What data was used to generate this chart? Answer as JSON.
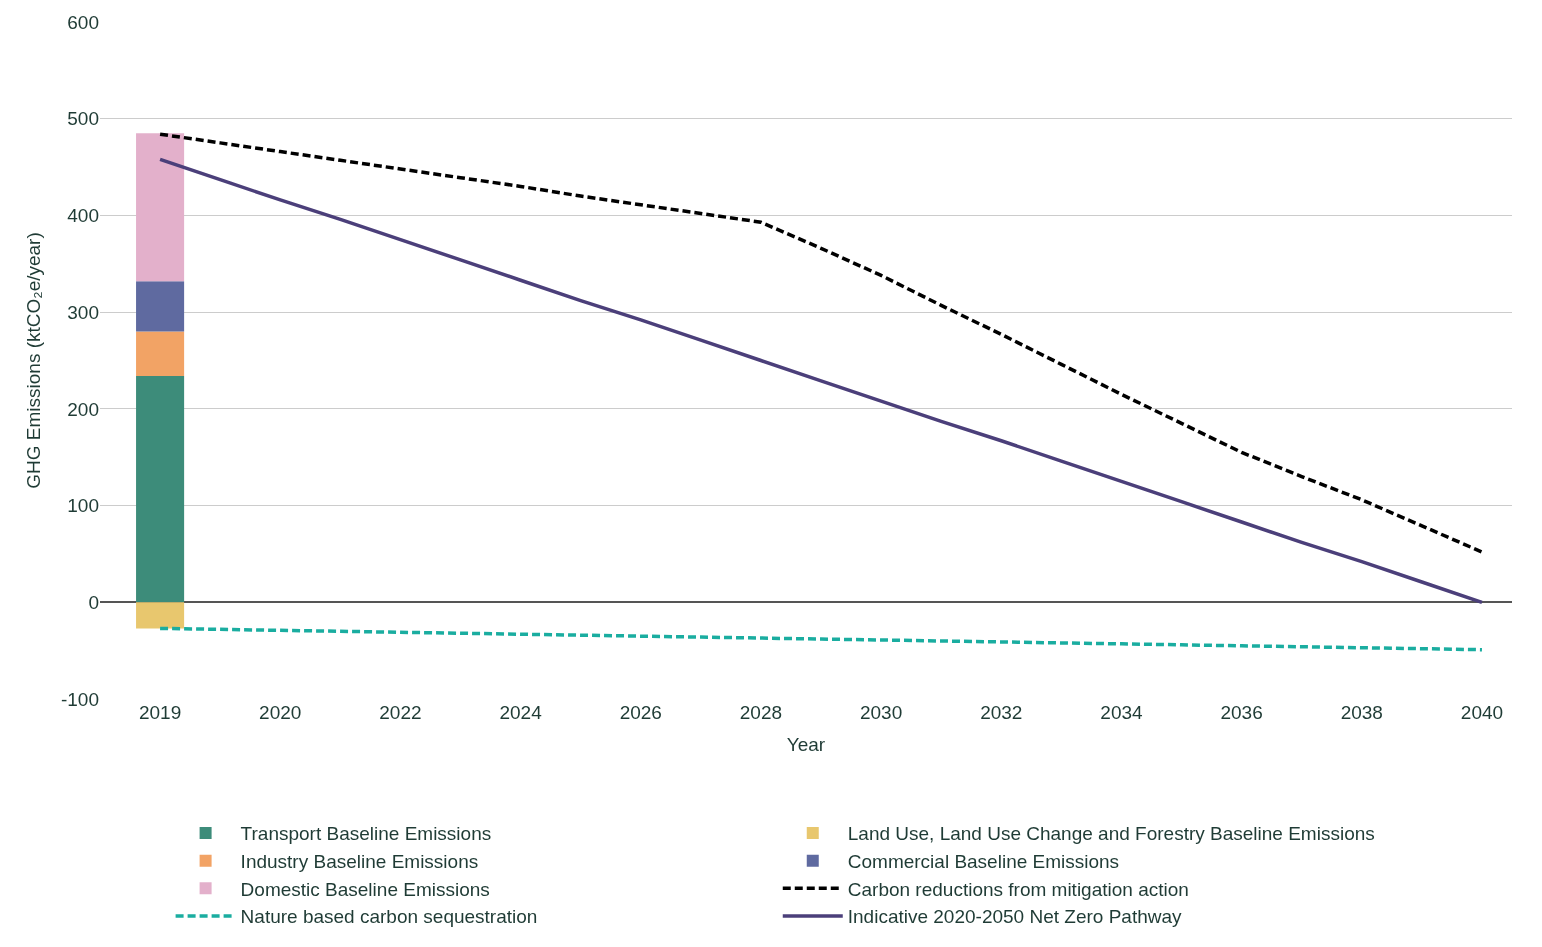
{
  "chart_data": {
    "type": "bar",
    "stacked": true,
    "xlabel": "Year",
    "ylabel": "GHG Emissions (ktCO₂e/year)",
    "categories": [
      "2019",
      null,
      "2020",
      null,
      "2022",
      null,
      "2024",
      null,
      "2026",
      null,
      "2028",
      null,
      "2030",
      null,
      "2032",
      null,
      "2034",
      null,
      "2036",
      null,
      "2038",
      null,
      "2040"
    ],
    "ylim": [
      -100,
      600
    ],
    "yticks": [
      -100,
      0,
      100,
      200,
      300,
      400,
      500,
      600
    ],
    "grid": "y",
    "legend": "bottom",
    "marker": "none",
    "series": [
      {
        "name": "Transport Baseline Emissions",
        "color": "#3d8c7a",
        "values": [
          234,
          null,
          null,
          null,
          null,
          null,
          null,
          null,
          null,
          null,
          null,
          null,
          null,
          null,
          null,
          null,
          null,
          null,
          null,
          null,
          null,
          null,
          null
        ]
      },
      {
        "name": "Land Use, Land Use Change and Forestry Baseline Emissions",
        "color": "#e8c76e",
        "values": [
          -27,
          null,
          null,
          null,
          null,
          null,
          null,
          null,
          null,
          null,
          null,
          null,
          null,
          null,
          null,
          null,
          null,
          null,
          null,
          null,
          null,
          null,
          null
        ]
      },
      {
        "name": "Industry Baseline Emissions",
        "color": "#f2a365",
        "values": [
          46,
          null,
          null,
          null,
          null,
          null,
          null,
          null,
          null,
          null,
          null,
          null,
          null,
          null,
          null,
          null,
          null,
          null,
          null,
          null,
          null,
          null,
          null
        ]
      },
      {
        "name": "Commercial Baseline Emissions",
        "color": "#5f6aa0",
        "values": [
          52,
          null,
          null,
          null,
          null,
          null,
          null,
          null,
          null,
          null,
          null,
          null,
          null,
          null,
          null,
          null,
          null,
          null,
          null,
          null,
          null,
          null,
          null
        ]
      },
      {
        "name": "Domestic Baseline Emissions",
        "color": "#e3b0cb",
        "values": [
          153,
          null,
          null,
          null,
          null,
          null,
          null,
          null,
          null,
          null,
          null,
          null,
          null,
          null,
          null,
          null,
          null,
          null,
          null,
          null,
          null,
          null,
          null
        ]
      },
      {
        "name": "Carbon reductions from mitigation action",
        "type": "line",
        "line_style": "dashed",
        "color": "#000000",
        "values": [
          484,
          475,
          466,
          457,
          448,
          439,
          430,
          420,
          411,
          402,
          393,
          366,
          338,
          307,
          277,
          246,
          215,
          185,
          155,
          130,
          106,
          79,
          52
        ]
      },
      {
        "name": "Nature based carbon sequestration",
        "type": "line",
        "line_style": "dashed",
        "color": "#1aada0",
        "values": [
          -27,
          -28,
          -29,
          -30,
          -31,
          -32,
          -33,
          -34,
          -35,
          -36,
          -37,
          -38,
          -39,
          -40,
          -41,
          -42,
          -43,
          -44,
          -45,
          -46,
          -47,
          -48,
          -49
        ]
      },
      {
        "name": "Indicative 2020-2050 Net Zero Pathway",
        "type": "line",
        "line_style": "solid",
        "color": "#4b3f7a",
        "values": [
          458,
          437,
          416,
          396,
          375,
          354,
          333,
          312,
          292,
          271,
          250,
          229,
          208,
          187,
          167,
          146,
          125,
          104,
          83,
          62,
          42,
          21,
          0
        ]
      }
    ]
  }
}
